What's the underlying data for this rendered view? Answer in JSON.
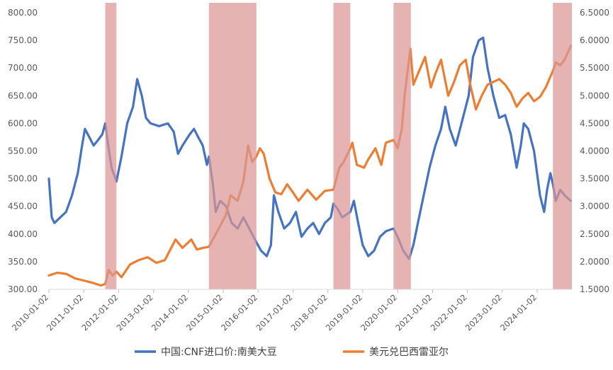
{
  "chart_data": {
    "type": "line",
    "title": "",
    "xlabel": "",
    "ylabel": "",
    "x_ticks": [
      "2010-01-02",
      "2011-01-02",
      "2012-01-02",
      "2013-01-02",
      "2014-01-02",
      "2015-01-02",
      "2016-01-02",
      "2017-01-02",
      "2018-01-02",
      "2019-01-02",
      "2020-01-02",
      "2021-01-02",
      "2022-01-02",
      "2023-01-02",
      "2024-01-02"
    ],
    "xlim": [
      "2010-01-02",
      "2024-12-31"
    ],
    "y_left": {
      "lim": [
        300,
        800
      ],
      "ticks": [
        "300.00",
        "350.00",
        "400.00",
        "450.00",
        "500.00",
        "550.00",
        "600.00",
        "650.00",
        "700.00",
        "750.00",
        "800.00"
      ]
    },
    "y_right": {
      "lim": [
        1.5,
        6.5
      ],
      "ticks": [
        "1.5000",
        "2.0000",
        "2.5000",
        "3.0000",
        "3.5000",
        "4.0000",
        "4.5000",
        "5.0000",
        "5.5000",
        "6.0000",
        "6.5000"
      ]
    },
    "grid": false,
    "legend_position": "bottom",
    "shaded_periods": [
      [
        "2011-08-15",
        "2011-12-10"
      ],
      [
        "2014-08-05",
        "2015-12-15"
      ],
      [
        "2018-03-01",
        "2018-08-25"
      ],
      [
        "2019-11-20",
        "2020-05-20"
      ],
      [
        "2024-06-15",
        "2024-12-31"
      ]
    ],
    "shade_color": "#d99694",
    "series": [
      {
        "name": "中国:CNF进口价:南美大豆",
        "axis": "left",
        "color": "#4472c4",
        "points": [
          [
            "2010-01-02",
            500
          ],
          [
            "2010-02-01",
            430
          ],
          [
            "2010-03-01",
            420
          ],
          [
            "2010-05-01",
            430
          ],
          [
            "2010-07-01",
            440
          ],
          [
            "2010-09-01",
            470
          ],
          [
            "2010-11-01",
            510
          ],
          [
            "2010-12-15",
            560
          ],
          [
            "2011-01-15",
            590
          ],
          [
            "2011-03-01",
            575
          ],
          [
            "2011-04-15",
            560
          ],
          [
            "2011-06-01",
            570
          ],
          [
            "2011-07-15",
            580
          ],
          [
            "2011-08-15",
            600
          ],
          [
            "2011-09-15",
            560
          ],
          [
            "2011-10-20",
            520
          ],
          [
            "2011-12-10",
            495
          ],
          [
            "2012-02-01",
            540
          ],
          [
            "2012-04-01",
            600
          ],
          [
            "2012-06-01",
            630
          ],
          [
            "2012-07-15",
            680
          ],
          [
            "2012-09-01",
            650
          ],
          [
            "2012-10-15",
            610
          ],
          [
            "2012-12-01",
            600
          ],
          [
            "2013-03-01",
            595
          ],
          [
            "2013-06-01",
            600
          ],
          [
            "2013-08-01",
            585
          ],
          [
            "2013-09-15",
            545
          ],
          [
            "2013-11-01",
            560
          ],
          [
            "2014-01-15",
            580
          ],
          [
            "2014-03-01",
            590
          ],
          [
            "2014-04-15",
            575
          ],
          [
            "2014-06-01",
            560
          ],
          [
            "2014-07-15",
            525
          ],
          [
            "2014-08-05",
            540
          ],
          [
            "2014-09-15",
            490
          ],
          [
            "2014-10-15",
            440
          ],
          [
            "2014-12-01",
            460
          ],
          [
            "2015-02-01",
            450
          ],
          [
            "2015-04-01",
            420
          ],
          [
            "2015-06-01",
            410
          ],
          [
            "2015-08-01",
            430
          ],
          [
            "2015-10-01",
            410
          ],
          [
            "2015-12-15",
            385
          ],
          [
            "2016-02-01",
            370
          ],
          [
            "2016-04-01",
            360
          ],
          [
            "2016-05-15",
            380
          ],
          [
            "2016-06-15",
            470
          ],
          [
            "2016-08-01",
            440
          ],
          [
            "2016-10-01",
            410
          ],
          [
            "2016-12-01",
            420
          ],
          [
            "2017-02-01",
            440
          ],
          [
            "2017-04-01",
            395
          ],
          [
            "2017-06-01",
            410
          ],
          [
            "2017-08-01",
            420
          ],
          [
            "2017-10-01",
            400
          ],
          [
            "2017-12-01",
            420
          ],
          [
            "2018-02-01",
            430
          ],
          [
            "2018-03-01",
            455
          ],
          [
            "2018-04-15",
            445
          ],
          [
            "2018-06-01",
            430
          ],
          [
            "2018-08-25",
            440
          ],
          [
            "2018-10-01",
            460
          ],
          [
            "2018-11-15",
            420
          ],
          [
            "2019-01-01",
            380
          ],
          [
            "2019-03-01",
            360
          ],
          [
            "2019-05-01",
            370
          ],
          [
            "2019-07-01",
            395
          ],
          [
            "2019-09-01",
            405
          ],
          [
            "2019-11-20",
            410
          ],
          [
            "2020-01-15",
            390
          ],
          [
            "2020-03-01",
            370
          ],
          [
            "2020-05-01",
            355
          ],
          [
            "2020-06-15",
            380
          ],
          [
            "2020-08-01",
            420
          ],
          [
            "2020-10-01",
            470
          ],
          [
            "2020-12-01",
            520
          ],
          [
            "2021-02-01",
            560
          ],
          [
            "2021-04-01",
            590
          ],
          [
            "2021-05-15",
            630
          ],
          [
            "2021-07-01",
            590
          ],
          [
            "2021-09-01",
            560
          ],
          [
            "2021-11-01",
            600
          ],
          [
            "2022-01-15",
            650
          ],
          [
            "2022-03-01",
            720
          ],
          [
            "2022-05-01",
            750
          ],
          [
            "2022-06-15",
            755
          ],
          [
            "2022-08-01",
            700
          ],
          [
            "2022-10-01",
            650
          ],
          [
            "2022-12-01",
            610
          ],
          [
            "2023-02-01",
            615
          ],
          [
            "2023-04-01",
            580
          ],
          [
            "2023-06-01",
            520
          ],
          [
            "2023-07-15",
            560
          ],
          [
            "2023-08-15",
            600
          ],
          [
            "2023-10-01",
            590
          ],
          [
            "2023-12-01",
            550
          ],
          [
            "2024-02-01",
            470
          ],
          [
            "2024-03-15",
            440
          ],
          [
            "2024-04-15",
            480
          ],
          [
            "2024-05-20",
            510
          ],
          [
            "2024-06-15",
            490
          ],
          [
            "2024-07-15",
            460
          ],
          [
            "2024-09-01",
            480
          ],
          [
            "2024-10-15",
            470
          ],
          [
            "2024-12-20",
            460
          ]
        ]
      },
      {
        "name": "美元兑巴西雷亚尔",
        "axis": "right",
        "color": "#ed7d31",
        "points": [
          [
            "2010-01-02",
            1.75
          ],
          [
            "2010-04-01",
            1.8
          ],
          [
            "2010-07-01",
            1.78
          ],
          [
            "2010-10-01",
            1.7
          ],
          [
            "2011-01-01",
            1.66
          ],
          [
            "2011-04-01",
            1.62
          ],
          [
            "2011-07-01",
            1.57
          ],
          [
            "2011-08-15",
            1.6
          ],
          [
            "2011-09-20",
            1.85
          ],
          [
            "2011-11-01",
            1.75
          ],
          [
            "2011-12-10",
            1.82
          ],
          [
            "2012-02-01",
            1.72
          ],
          [
            "2012-05-01",
            1.95
          ],
          [
            "2012-08-01",
            2.03
          ],
          [
            "2012-11-01",
            2.08
          ],
          [
            "2013-02-01",
            1.98
          ],
          [
            "2013-05-01",
            2.03
          ],
          [
            "2013-08-20",
            2.4
          ],
          [
            "2013-11-01",
            2.25
          ],
          [
            "2014-02-01",
            2.4
          ],
          [
            "2014-04-01",
            2.22
          ],
          [
            "2014-06-01",
            2.25
          ],
          [
            "2014-08-05",
            2.27
          ],
          [
            "2014-10-01",
            2.45
          ],
          [
            "2014-12-01",
            2.65
          ],
          [
            "2015-02-01",
            2.85
          ],
          [
            "2015-03-20",
            3.2
          ],
          [
            "2015-06-01",
            3.1
          ],
          [
            "2015-08-01",
            3.45
          ],
          [
            "2015-09-20",
            4.1
          ],
          [
            "2015-11-01",
            3.8
          ],
          [
            "2015-12-15",
            3.9
          ],
          [
            "2016-01-20",
            4.05
          ],
          [
            "2016-03-01",
            3.95
          ],
          [
            "2016-05-01",
            3.5
          ],
          [
            "2016-07-01",
            3.25
          ],
          [
            "2016-09-01",
            3.22
          ],
          [
            "2016-11-01",
            3.4
          ],
          [
            "2017-01-01",
            3.25
          ],
          [
            "2017-03-01",
            3.1
          ],
          [
            "2017-06-01",
            3.3
          ],
          [
            "2017-09-01",
            3.12
          ],
          [
            "2017-12-01",
            3.28
          ],
          [
            "2018-03-01",
            3.3
          ],
          [
            "2018-05-01",
            3.7
          ],
          [
            "2018-06-15",
            3.8
          ],
          [
            "2018-08-25",
            4.05
          ],
          [
            "2018-09-15",
            4.15
          ],
          [
            "2018-11-01",
            3.75
          ],
          [
            "2019-01-15",
            3.7
          ],
          [
            "2019-03-01",
            3.85
          ],
          [
            "2019-05-15",
            4.05
          ],
          [
            "2019-07-15",
            3.75
          ],
          [
            "2019-09-01",
            4.15
          ],
          [
            "2019-11-20",
            4.2
          ],
          [
            "2020-01-01",
            4.05
          ],
          [
            "2020-02-15",
            4.4
          ],
          [
            "2020-03-15",
            5.0
          ],
          [
            "2020-05-15",
            5.85
          ],
          [
            "2020-06-15",
            5.2
          ],
          [
            "2020-08-15",
            5.45
          ],
          [
            "2020-10-15",
            5.7
          ],
          [
            "2020-12-15",
            5.15
          ],
          [
            "2021-02-01",
            5.4
          ],
          [
            "2021-04-01",
            5.65
          ],
          [
            "2021-06-15",
            5.0
          ],
          [
            "2021-08-15",
            5.25
          ],
          [
            "2021-10-15",
            5.55
          ],
          [
            "2021-12-15",
            5.65
          ],
          [
            "2022-02-01",
            5.2
          ],
          [
            "2022-04-01",
            4.75
          ],
          [
            "2022-06-01",
            5.0
          ],
          [
            "2022-08-01",
            5.2
          ],
          [
            "2022-10-01",
            5.25
          ],
          [
            "2022-12-01",
            5.3
          ],
          [
            "2023-02-01",
            5.2
          ],
          [
            "2023-04-01",
            5.05
          ],
          [
            "2023-06-01",
            4.8
          ],
          [
            "2023-08-01",
            4.95
          ],
          [
            "2023-10-01",
            5.05
          ],
          [
            "2023-12-01",
            4.9
          ],
          [
            "2024-02-01",
            4.98
          ],
          [
            "2024-04-01",
            5.15
          ],
          [
            "2024-06-15",
            5.45
          ],
          [
            "2024-07-15",
            5.6
          ],
          [
            "2024-09-01",
            5.55
          ],
          [
            "2024-10-15",
            5.65
          ],
          [
            "2024-12-20",
            5.9
          ]
        ]
      }
    ]
  }
}
